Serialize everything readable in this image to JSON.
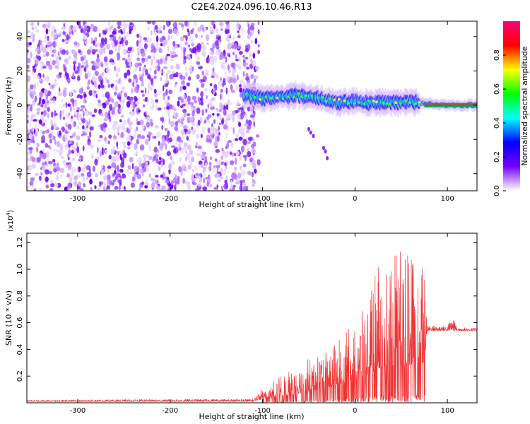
{
  "figure": {
    "title": "C2E4.2024.096.10.46.R13"
  },
  "chart_data": [
    {
      "type": "heatmap",
      "xlabel": "Height of straight line (km)",
      "ylabel": "Frequency (Hz)",
      "xlim": [
        -355,
        132
      ],
      "ylim": [
        -50,
        49
      ],
      "x_ticks": [
        -300,
        -200,
        -100,
        0,
        100
      ],
      "y_ticks": [
        -40,
        -20,
        0,
        20,
        40
      ],
      "colorbar": {
        "label": "Normalized spectral amplitude",
        "range": [
          0.0,
          1.0
        ],
        "ticks": [
          "0.0",
          "0.2",
          "0.4",
          "0.6",
          "0.8"
        ],
        "colormap": [
          "#ffffff",
          "#7700ff",
          "#0000ff",
          "#00ffff",
          "#00ff00",
          "#ffff00",
          "#ff0000",
          "#ff0077"
        ]
      },
      "noise_region_x": [
        -355,
        -112
      ],
      "signal_track": [
        {
          "x": -120,
          "f": 6
        },
        {
          "x": -100,
          "f": 4
        },
        {
          "x": -80,
          "f": 5
        },
        {
          "x": -60,
          "f": 6
        },
        {
          "x": -40,
          "f": 4
        },
        {
          "x": -20,
          "f": 2
        },
        {
          "x": 0,
          "f": 2
        },
        {
          "x": 20,
          "f": 1
        },
        {
          "x": 40,
          "f": 2
        },
        {
          "x": 60,
          "f": 2
        },
        {
          "x": 80,
          "f": 1
        },
        {
          "x": 100,
          "f": 0
        },
        {
          "x": 132,
          "f": 0
        }
      ],
      "grid": false
    },
    {
      "type": "line",
      "xlabel": "Height of straight line (km)",
      "ylabel": "SNR (10 * v/v)",
      "y_scale_label": "(x10^4)",
      "y_scale_base": "(x10",
      "y_scale_exp": "4",
      "y_scale_close": ")",
      "xlim": [
        -355,
        132
      ],
      "ylim": [
        0,
        1.27
      ],
      "x_ticks": [
        -300,
        -200,
        -100,
        0,
        100
      ],
      "y_ticks": [
        0.2,
        0.4,
        0.6,
        0.8,
        1.0,
        1.2
      ],
      "y_tick_labels": [
        "0.2",
        "0.4",
        "0.6",
        "0.8",
        "1.0",
        "1.2"
      ],
      "series": [
        {
          "color": "#ee3333",
          "envelope": [
            {
              "x": -355,
              "base": 0.01,
              "amp": 0.01
            },
            {
              "x": -110,
              "base": 0.01,
              "amp": 0.02
            },
            {
              "x": -100,
              "base": 0.03,
              "amp": 0.08
            },
            {
              "x": -80,
              "base": 0.05,
              "amp": 0.15
            },
            {
              "x": -60,
              "base": 0.07,
              "amp": 0.22
            },
            {
              "x": -40,
              "base": 0.1,
              "amp": 0.28
            },
            {
              "x": -20,
              "base": 0.13,
              "amp": 0.33
            },
            {
              "x": 0,
              "base": 0.18,
              "amp": 0.42
            },
            {
              "x": 15,
              "base": 0.22,
              "amp": 0.55
            },
            {
              "x": 25,
              "base": 0.25,
              "amp": 0.85
            },
            {
              "x": 40,
              "base": 0.28,
              "amp": 0.95
            },
            {
              "x": 55,
              "base": 0.28,
              "amp": 0.85
            },
            {
              "x": 75,
              "base": 0.3,
              "amp": 0.75
            },
            {
              "x": 78,
              "base": 0.54,
              "amp": 0.04
            },
            {
              "x": 100,
              "base": 0.54,
              "amp": 0.04
            },
            {
              "x": 106,
              "base": 0.54,
              "amp": 0.12
            },
            {
              "x": 110,
              "base": 0.54,
              "amp": 0.03
            },
            {
              "x": 132,
              "base": 0.54,
              "amp": 0.02
            }
          ]
        }
      ],
      "grid": false
    }
  ]
}
